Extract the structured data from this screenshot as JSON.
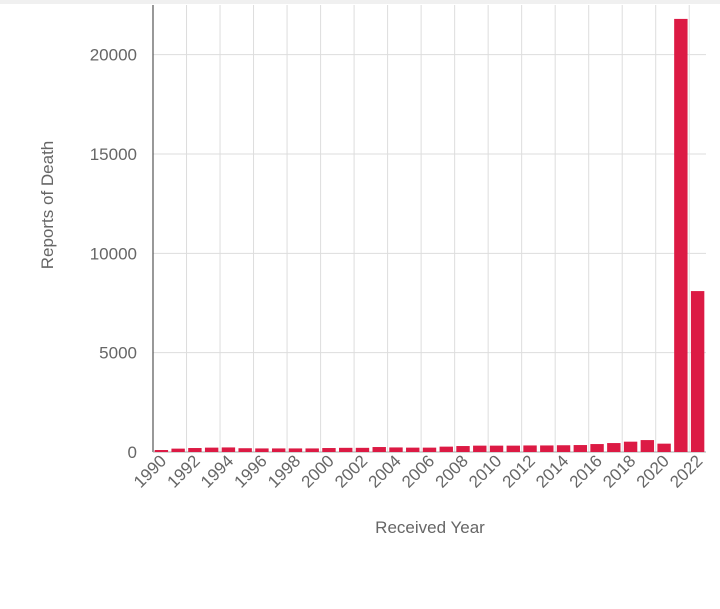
{
  "chart_data": {
    "type": "bar",
    "x_label": "Received Year",
    "y_label": "Reports of Death",
    "categories": [
      "1990",
      null,
      "1992",
      null,
      "1994",
      null,
      "1996",
      null,
      "1998",
      null,
      "2000",
      null,
      "2002",
      null,
      "2004",
      null,
      "2006",
      null,
      "2008",
      null,
      "2010",
      null,
      "2012",
      null,
      "2014",
      null,
      "2016",
      null,
      "2018",
      null,
      "2020",
      null,
      "2022"
    ],
    "values": [
      100,
      170,
      200,
      220,
      230,
      190,
      180,
      180,
      180,
      180,
      200,
      210,
      210,
      250,
      230,
      220,
      220,
      270,
      300,
      320,
      320,
      320,
      330,
      330,
      340,
      350,
      400,
      450,
      520,
      600,
      420,
      21800,
      8100
    ],
    "color": "#dc1a44",
    "ylim": [
      0,
      22500
    ],
    "yticks": [
      0,
      5000,
      10000,
      15000,
      20000
    ],
    "grid": true
  }
}
